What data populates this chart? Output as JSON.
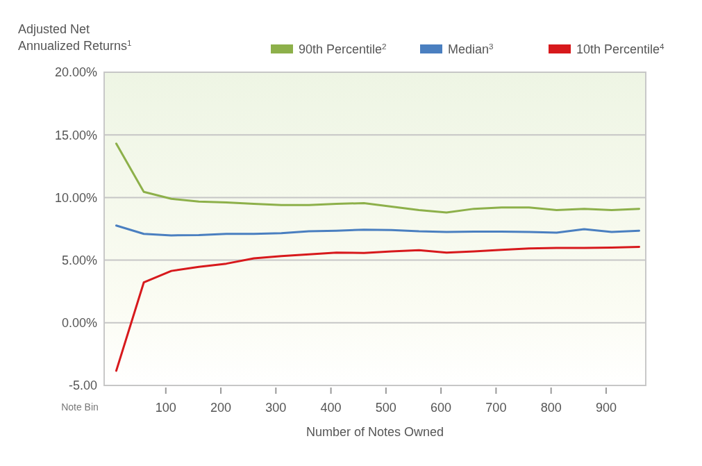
{
  "chart_data": {
    "type": "line",
    "ylabel": "Adjusted Net Annualized Returns$^{1}$",
    "xlabel": "Number of Notes Owned",
    "annotations": [
      "Note Bin"
    ],
    "x": [
      10,
      60,
      110,
      160,
      210,
      260,
      310,
      360,
      410,
      460,
      510,
      560,
      610,
      660,
      710,
      760,
      810,
      860,
      910,
      960
    ],
    "series": [
      {
        "name": "90th Percentile$^{2}$",
        "color": "#8db04a",
        "values": [
          14.3,
          10.45,
          9.9,
          9.67,
          9.6,
          9.5,
          9.4,
          9.4,
          9.5,
          9.55,
          9.28,
          9.0,
          8.8,
          9.1,
          9.2,
          9.2,
          9.0,
          9.1,
          9.0,
          9.1
        ]
      },
      {
        "name": "Median$^{3}$",
        "color": "#4a7fc0",
        "values": [
          7.76,
          7.1,
          6.98,
          7.0,
          7.1,
          7.1,
          7.15,
          7.3,
          7.35,
          7.43,
          7.4,
          7.3,
          7.25,
          7.28,
          7.28,
          7.25,
          7.2,
          7.47,
          7.25,
          7.35
        ]
      },
      {
        "name": "10th Percentile$^{4}$",
        "color": "#d7191c",
        "values": [
          -3.83,
          3.22,
          4.14,
          4.47,
          4.72,
          5.14,
          5.33,
          5.46,
          5.6,
          5.57,
          5.7,
          5.79,
          5.6,
          5.7,
          5.82,
          5.93,
          5.97,
          5.97,
          6.0,
          6.06
        ]
      }
    ],
    "xlim": [
      -12,
      972
    ],
    "xticks": [
      100,
      200,
      300,
      400,
      500,
      600,
      700,
      800,
      900
    ],
    "ylim": [
      -5,
      20
    ],
    "yticks": [
      {
        "value": -5,
        "label": "-5.00"
      },
      {
        "value": 0,
        "label": "0.00%"
      },
      {
        "value": 5,
        "label": "5.00%"
      },
      {
        "value": 10,
        "label": "10.00%"
      },
      {
        "value": 15,
        "label": "15.00%"
      },
      {
        "value": 20,
        "label": "20.00%"
      }
    ],
    "grid": "y",
    "legend": "top",
    "marker": "none",
    "line_style": "solid"
  }
}
